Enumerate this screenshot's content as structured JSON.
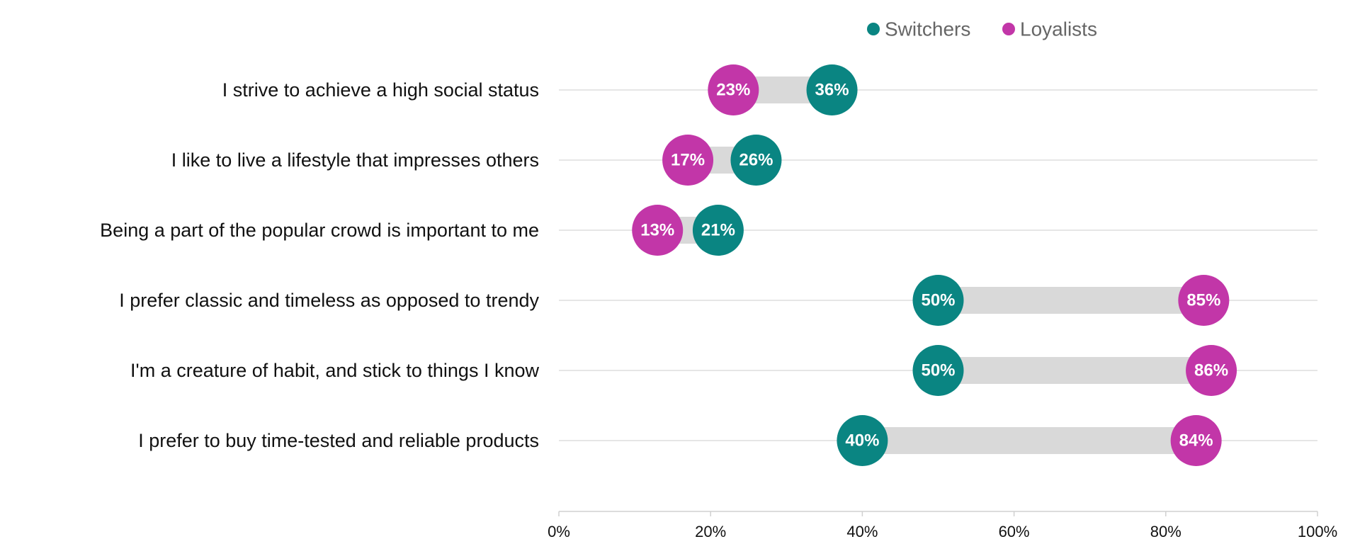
{
  "chart_data": {
    "type": "dumbbell",
    "title": "",
    "xlabel": "",
    "ylabel": "",
    "xlim": [
      0,
      100
    ],
    "x_ticks": [
      "0%",
      "20%",
      "40%",
      "60%",
      "80%",
      "100%"
    ],
    "x_tick_values": [
      0,
      20,
      40,
      60,
      80,
      100
    ],
    "grid": true,
    "legend_position": "top",
    "categories": [
      "I strive to achieve a high social status",
      "I like to live a lifestyle that impresses others",
      "Being a part of the popular crowd is important to me",
      "I prefer classic and timeless as opposed to trendy",
      "I'm a creature of habit, and stick to things I know",
      "I prefer to buy time-tested and reliable products"
    ],
    "series": [
      {
        "name": "Switchers",
        "color": "#0a8582",
        "values": [
          36,
          26,
          21,
          50,
          50,
          40
        ],
        "labels": [
          "36%",
          "26%",
          "21%",
          "50%",
          "50%",
          "40%"
        ]
      },
      {
        "name": "Loyalists",
        "color": "#c236a8",
        "values": [
          23,
          17,
          13,
          85,
          86,
          84
        ],
        "labels": [
          "23%",
          "17%",
          "13%",
          "85%",
          "86%",
          "84%"
        ]
      }
    ],
    "colors": {
      "connector": "#d9d9d9",
      "gridline": "#dedede",
      "axis": "#d0d0d0",
      "category_text": "#111111",
      "legend_text": "#666666",
      "tick_text": "#111111",
      "marker_text": "#ffffff"
    }
  }
}
